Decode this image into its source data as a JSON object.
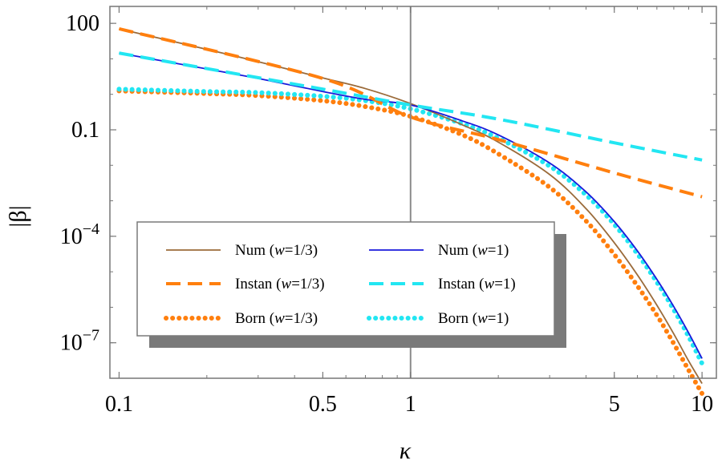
{
  "chart_data": {
    "type": "line",
    "title": "",
    "xlabel": "κ",
    "ylabel": "|β|",
    "x_scale": "log",
    "y_scale": "log",
    "xlim": [
      0.093,
      11.2
    ],
    "ylim": [
      1e-08,
      300
    ],
    "x_ticks": [
      {
        "value": 0.1,
        "label": "0.1"
      },
      {
        "value": 0.5,
        "label": "0.5"
      },
      {
        "value": 1,
        "label": "1"
      },
      {
        "value": 5,
        "label": "5"
      },
      {
        "value": 10,
        "label": "10"
      }
    ],
    "y_ticks": [
      {
        "value": 100,
        "base": "100",
        "exp": ""
      },
      {
        "value": 0.1,
        "base": "0.1",
        "exp": ""
      },
      {
        "value": 0.0001,
        "base": "10",
        "exp": "−4"
      },
      {
        "value": 1e-07,
        "base": "10",
        "exp": "−7"
      }
    ],
    "reference_line_x": 1,
    "legend_columns": 2,
    "series": [
      {
        "name": "Num (w=1/3)",
        "label_main": "Num (",
        "label_var": "w",
        "label_rest": "=1/3)",
        "color": "#9b6b3a",
        "style": "solid",
        "x": [
          0.1,
          0.2,
          0.3,
          0.5,
          0.7,
          1,
          1.5,
          2,
          3,
          4,
          5,
          6,
          7,
          8,
          9,
          10
        ],
        "y": [
          70,
          18.5,
          8.3,
          2.9,
          1.45,
          0.55,
          0.14,
          0.045,
          0.0055,
          0.0006,
          6.57e-05,
          8.16e-06,
          1.14e-06,
          1.77e-07,
          3.04e-08,
          7.1e-09
        ]
      },
      {
        "name": "Num (w=1)",
        "label_main": "Num (",
        "label_var": "w",
        "label_rest": "=1)",
        "color": "#1a1adb",
        "style": "solid",
        "x": [
          0.1,
          0.2,
          0.3,
          0.5,
          0.7,
          1,
          1.5,
          2,
          3,
          4,
          5,
          6,
          7,
          8,
          9,
          10
        ],
        "y": [
          14.5,
          5.2,
          2.8,
          1.2,
          0.72,
          0.5,
          0.18,
          0.072,
          0.0116,
          0.00178,
          0.00026,
          3.88e-05,
          6.1e-06,
          1.04e-06,
          1.88e-07,
          3.6e-08
        ]
      },
      {
        "name": "Instan (w=1/3)",
        "label_main": "Instan (",
        "label_var": "w",
        "label_rest": "=1/3)",
        "color": "#ff7f0e",
        "style": "dashed",
        "x": [
          0.1,
          0.5,
          1,
          2,
          5,
          10
        ],
        "y": [
          70,
          2.8,
          0.23,
          0.053,
          0.0061,
          0.0013
        ]
      },
      {
        "name": "Instan (w=1)",
        "label_main": "Instan (",
        "label_var": "w",
        "label_rest": "=1)",
        "color": "#22e6f2",
        "style": "dashed",
        "x": [
          0.1,
          0.5,
          1,
          2,
          5,
          10
        ],
        "y": [
          14.5,
          1.4,
          0.5,
          0.2,
          0.043,
          0.0141
        ]
      },
      {
        "name": "Born (w=1/3)",
        "label_main": "Born (",
        "label_var": "w",
        "label_rest": "=1/3)",
        "color": "#ff7f0e",
        "style": "dotted",
        "x": [
          0.1,
          0.2,
          0.3,
          0.5,
          0.7,
          1,
          1.5,
          2,
          3,
          4,
          5,
          6,
          7,
          8,
          9,
          10
        ],
        "y": [
          1.25,
          1.05,
          0.92,
          0.66,
          0.45,
          0.24,
          0.073,
          0.021,
          0.0024,
          0.00027,
          3.07e-05,
          4.01e-06,
          5.95e-07,
          9.45e-08,
          1.68e-08,
          3.7e-09
        ]
      },
      {
        "name": "Born (w=1)",
        "label_main": "Born (",
        "label_var": "w",
        "label_rest": "=1)",
        "color": "#22e6f2",
        "style": "dotted",
        "x": [
          0.1,
          0.2,
          0.3,
          0.5,
          0.7,
          1,
          1.5,
          2,
          3,
          4,
          5,
          6,
          7,
          8,
          9,
          10
        ],
        "y": [
          1.4,
          1.2,
          1.12,
          0.88,
          0.66,
          0.39,
          0.15,
          0.058,
          0.0095,
          0.00146,
          0.000215,
          3.2e-05,
          5.1e-06,
          8.5e-07,
          1.48e-07,
          2.6e-08
        ]
      }
    ]
  }
}
